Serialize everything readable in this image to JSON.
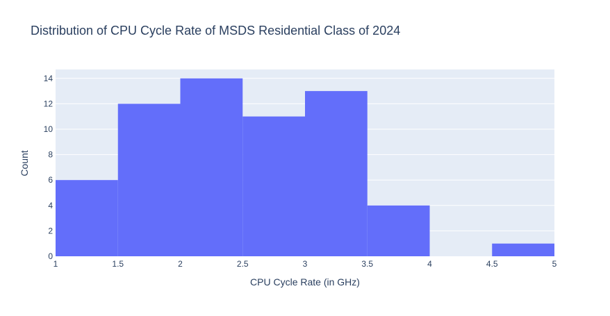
{
  "chart_data": {
    "type": "bar",
    "title": "Distribution of CPU Cycle Rate of MSDS Residential Class of 2024",
    "xlabel": "CPU Cycle Rate (in GHz)",
    "ylabel": "Count",
    "bins": [
      {
        "x0": 1.0,
        "x1": 1.5,
        "count": 6
      },
      {
        "x0": 1.5,
        "x1": 2.0,
        "count": 12
      },
      {
        "x0": 2.0,
        "x1": 2.5,
        "count": 14
      },
      {
        "x0": 2.5,
        "x1": 3.0,
        "count": 11
      },
      {
        "x0": 3.0,
        "x1": 3.5,
        "count": 13
      },
      {
        "x0": 3.5,
        "x1": 4.0,
        "count": 4
      },
      {
        "x0": 4.0,
        "x1": 4.5,
        "count": 0
      },
      {
        "x0": 4.5,
        "x1": 5.0,
        "count": 1
      }
    ],
    "xlim": [
      1,
      5
    ],
    "ylim": [
      0,
      14.7
    ],
    "xticks": [
      {
        "value": 1,
        "label": "1"
      },
      {
        "value": 1.5,
        "label": "1.5"
      },
      {
        "value": 2,
        "label": "2"
      },
      {
        "value": 2.5,
        "label": "2.5"
      },
      {
        "value": 3,
        "label": "3"
      },
      {
        "value": 3.5,
        "label": "3.5"
      },
      {
        "value": 4,
        "label": "4"
      },
      {
        "value": 4.5,
        "label": "4.5"
      },
      {
        "value": 5,
        "label": "5"
      }
    ],
    "yticks": [
      {
        "value": 0,
        "label": "0"
      },
      {
        "value": 2,
        "label": "2"
      },
      {
        "value": 4,
        "label": "4"
      },
      {
        "value": 6,
        "label": "6"
      },
      {
        "value": 8,
        "label": "8"
      },
      {
        "value": 10,
        "label": "10"
      },
      {
        "value": 12,
        "label": "12"
      },
      {
        "value": 14,
        "label": "14"
      }
    ],
    "grid": true,
    "legend": "none",
    "colors": {
      "bar": "#636efa",
      "plot_background": "#e5ecf6",
      "grid": "#ffffff",
      "text": "#2a3f5f"
    }
  }
}
